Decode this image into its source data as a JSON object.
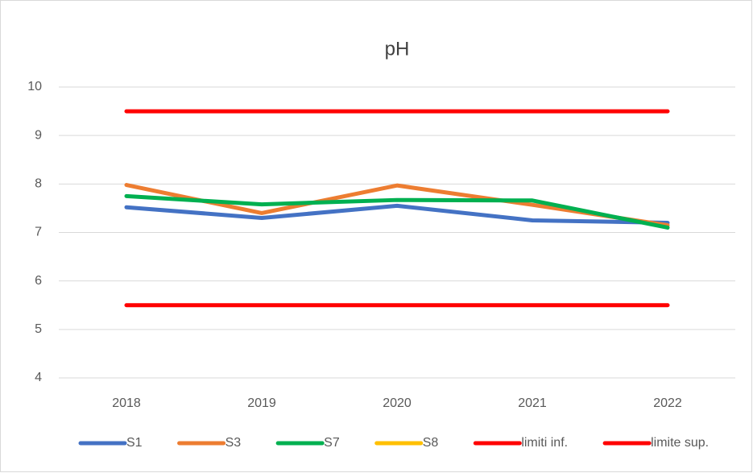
{
  "chart_data": {
    "type": "line",
    "title": "pH",
    "categories": [
      "2018",
      "2019",
      "2020",
      "2021",
      "2022"
    ],
    "series": [
      {
        "name": "S1",
        "color": "#4472c4",
        "values": [
          7.52,
          7.3,
          7.55,
          7.25,
          7.2
        ]
      },
      {
        "name": "S3",
        "color": "#ed7d31",
        "values": [
          7.98,
          7.4,
          7.97,
          7.57,
          7.15
        ]
      },
      {
        "name": "S7",
        "color": "#00b050",
        "values": [
          7.75,
          7.58,
          7.67,
          7.66,
          7.1
        ]
      },
      {
        "name": "S8",
        "color": "#ffc000",
        "values": [
          null,
          null,
          null,
          null,
          null
        ]
      },
      {
        "name": "limiti inf.",
        "color": "#ff0000",
        "values": [
          5.5,
          5.5,
          5.5,
          5.5,
          5.5
        ]
      },
      {
        "name": "limite sup.",
        "color": "#ff0000",
        "values": [
          9.5,
          9.5,
          9.5,
          9.5,
          9.5
        ]
      }
    ],
    "ylim": [
      4,
      10
    ],
    "yticks": [
      4,
      5,
      6,
      7,
      8,
      9,
      10
    ],
    "grid": true,
    "legend": "bottom"
  }
}
